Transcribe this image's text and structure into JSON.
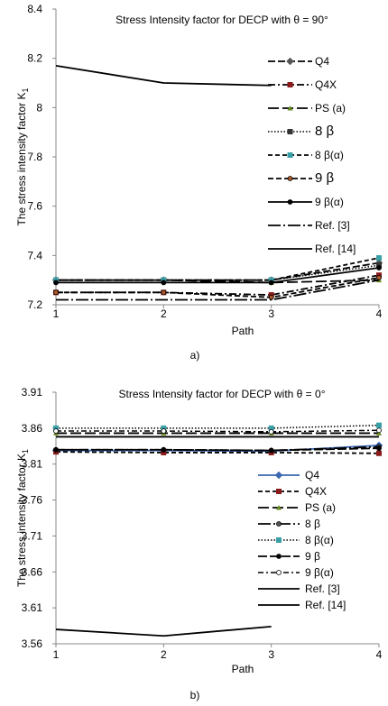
{
  "chart_data": [
    {
      "type": "line",
      "title": "Stress Intensity factor for DECP with θ = 90°",
      "xlabel": "Path",
      "ylabel": "The stress intensity factor K",
      "ylabel_sub": "1",
      "caption": "a)",
      "x": [
        1,
        2,
        3,
        4
      ],
      "ylim": [
        7.2,
        8.4
      ],
      "yticks": [
        "7.2",
        "7.4",
        "7.6",
        "7.8",
        "8",
        "8.2",
        "8.4"
      ],
      "grid": false,
      "legend_position": "right",
      "series": [
        {
          "name": "Q4",
          "values": [
            7.3,
            7.3,
            7.3,
            7.37
          ]
        },
        {
          "name": "Q4X",
          "values": [
            7.25,
            7.25,
            7.24,
            7.32
          ]
        },
        {
          "name": "PS (a)",
          "values": [
            7.3,
            7.3,
            7.29,
            7.3
          ]
        },
        {
          "name": "8 β",
          "values": [
            7.3,
            7.3,
            7.3,
            7.36
          ]
        },
        {
          "name": "8 β(α)",
          "values": [
            7.3,
            7.3,
            7.3,
            7.39
          ]
        },
        {
          "name": "9 β",
          "values": [
            7.25,
            7.25,
            7.23,
            7.31
          ]
        },
        {
          "name": "9 β(α)",
          "values": [
            7.29,
            7.29,
            7.29,
            7.35
          ]
        },
        {
          "name": "Ref. [3]",
          "values": [
            7.22,
            7.22,
            7.22,
            7.3
          ]
        },
        {
          "name": "Ref. [14]",
          "values": [
            8.17,
            8.1,
            8.09,
            null
          ]
        }
      ]
    },
    {
      "type": "line",
      "title": "Stress Intensity factor for DECP with  θ = 0°",
      "xlabel": "Path",
      "ylabel": "The stress intensity factor K",
      "ylabel_sub": "1",
      "caption": "b)",
      "x": [
        1,
        2,
        3,
        4
      ],
      "ylim": [
        3.56,
        3.91
      ],
      "yticks": [
        "3.56",
        "3.61",
        "3.66",
        "3.71",
        "3.76",
        "3.81",
        "3.86",
        "3.91"
      ],
      "grid": false,
      "legend_position": "right",
      "series": [
        {
          "name": "Q4",
          "values": [
            3.829,
            3.829,
            3.828,
            3.836
          ]
        },
        {
          "name": "Q4X",
          "values": [
            3.827,
            3.826,
            3.826,
            3.825
          ]
        },
        {
          "name": "PS (a)",
          "values": [
            3.853,
            3.853,
            3.853,
            3.853
          ]
        },
        {
          "name": "8 β",
          "values": [
            3.83,
            3.83,
            3.829,
            3.834
          ]
        },
        {
          "name": "8 β(α)",
          "values": [
            3.86,
            3.86,
            3.86,
            3.864
          ]
        },
        {
          "name": "9 β",
          "values": [
            3.83,
            3.83,
            3.829,
            3.832
          ]
        },
        {
          "name": "9 β(α)",
          "values": [
            3.856,
            3.856,
            3.855,
            3.857
          ]
        },
        {
          "name": "Ref. [3]",
          "values": [
            3.848,
            3.848,
            3.848,
            3.848
          ]
        },
        {
          "name": "Ref. [14]",
          "values": [
            3.58,
            3.571,
            3.584,
            null
          ]
        }
      ]
    }
  ]
}
